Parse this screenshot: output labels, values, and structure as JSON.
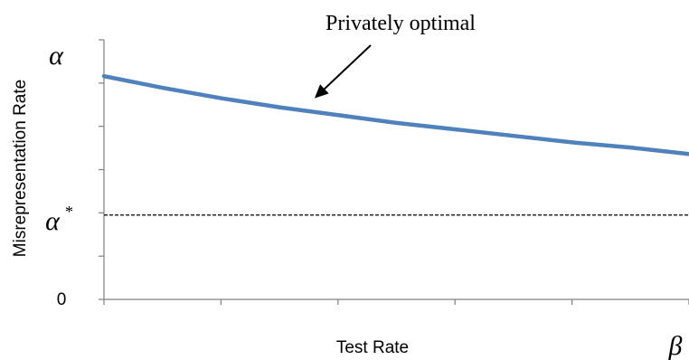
{
  "chart_data": {
    "type": "line",
    "xlabel": "Test Rate",
    "ylabel": "Misrepresentation Rate",
    "x_end_label": "β",
    "y_tick_labels": {
      "top": "α",
      "ref": "α",
      "ref_superscript": "*",
      "zero": "0"
    },
    "xlim": [
      0,
      1
    ],
    "ylim": [
      0,
      1
    ],
    "y_ticks": [
      0,
      0.1667,
      0.3333,
      0.5,
      0.6667,
      0.8333,
      1.0
    ],
    "x_ticks": [
      0,
      0.2,
      0.4,
      0.6,
      0.8,
      1.0
    ],
    "series": [
      {
        "color": "#4f81bd",
        "x": [
          0,
          0.1,
          0.2,
          0.3,
          0.4,
          0.5,
          0.6,
          0.7,
          0.8,
          0.9,
          1.0
        ],
        "y": [
          0.86,
          0.815,
          0.775,
          0.74,
          0.71,
          0.68,
          0.655,
          0.63,
          0.605,
          0.585,
          0.56
        ]
      }
    ],
    "reference_line": {
      "y": 0.325,
      "style": "dashed",
      "color": "#000000"
    },
    "annotation": {
      "text": "Privately optimal",
      "target": {
        "x": 0.36,
        "y": 0.775
      }
    },
    "grid": false
  }
}
